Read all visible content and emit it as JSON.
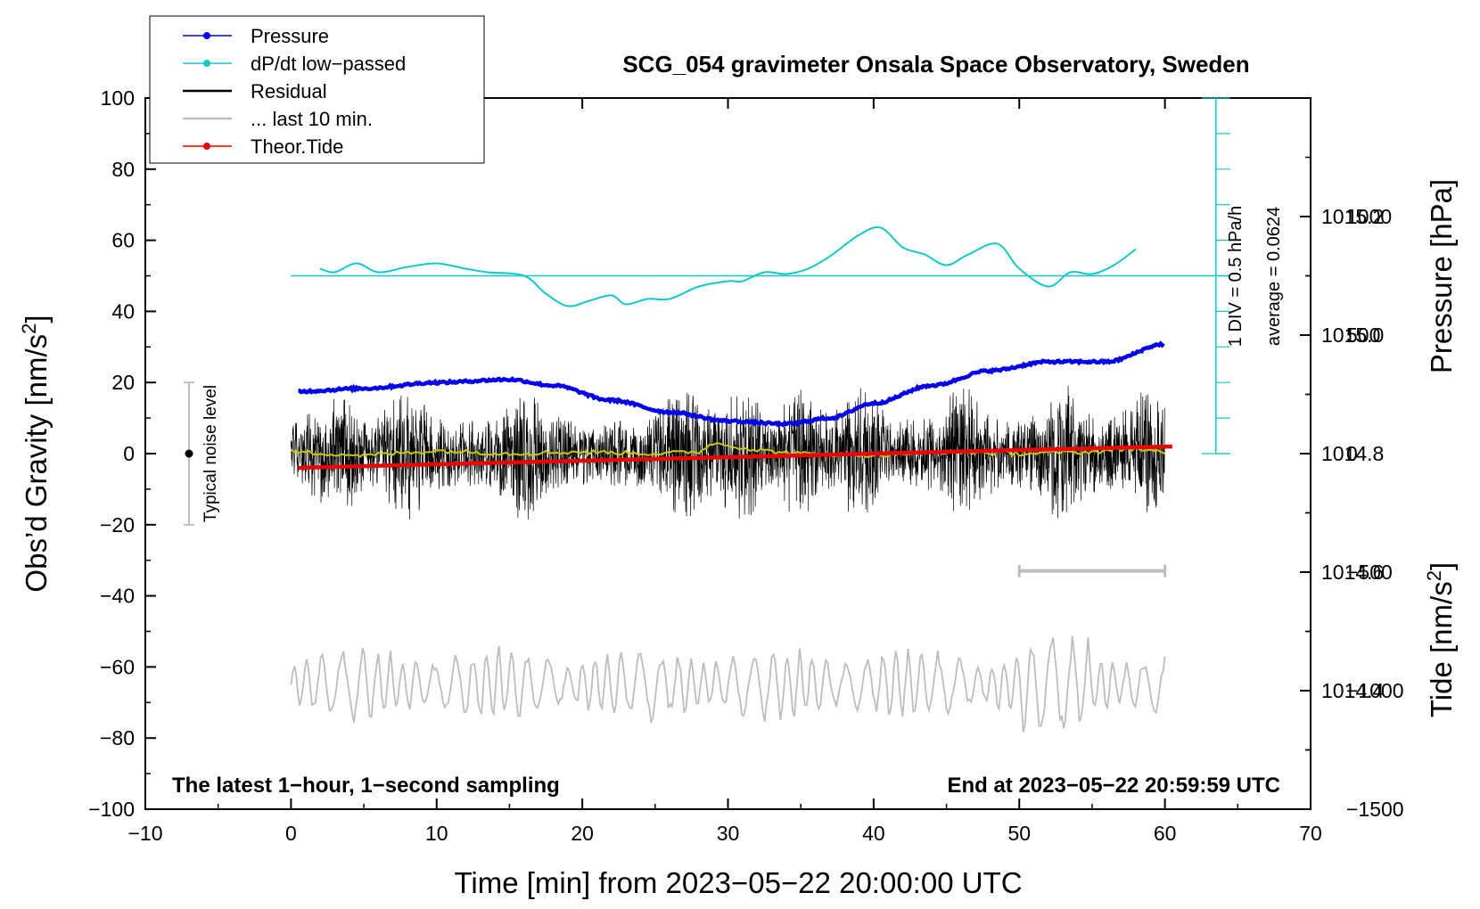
{
  "chart_data": {
    "type": "line",
    "title": "SCG_054 gravimeter Onsala Space Observatory, Sweden",
    "xlabel": "Time [min] from 2023−05−22 20:00:00 UTC",
    "ylabel_left_main": "Obs’d Gravity [nm/s",
    "ylabel_left_sup": "2",
    "ylabel_left_end": "]",
    "ylabel_right_top": "Pressure [hPa]",
    "ylabel_right_bottom_main": "Tide [nm/s",
    "ylabel_right_bottom_sup": "2",
    "ylabel_right_bottom_end": "]",
    "xlim": [
      -10,
      70
    ],
    "ylim_left": [
      -100,
      100
    ],
    "pressure_range": [
      1014.2,
      1015.4
    ],
    "tide_range": [
      -1500,
      1500
    ],
    "x_ticks": [
      "−10",
      "0",
      "10",
      "20",
      "30",
      "40",
      "50",
      "60",
      "70"
    ],
    "y_ticks_left": [
      "100",
      "80",
      "60",
      "40",
      "20",
      "0",
      "−20",
      "−40",
      "−60",
      "−80",
      "−100"
    ],
    "pressure_ticks": [
      "1015.2",
      "1015.0",
      "1014.8",
      "1014.6",
      "1014.4"
    ],
    "tide_ticks": [
      "1000",
      "500",
      "0",
      "−500",
      "−1000",
      "−1500"
    ],
    "annotation_left": "The latest 1−hour, 1−second sampling",
    "annotation_right": "End at 2023−05−22 20:59:59 UTC",
    "noise_label": "Typical noise level",
    "noise_level": {
      "x": -7,
      "center": 0,
      "halfrange": 20
    },
    "scale_bar_label": "1 DIV = 0.5 hPa/h",
    "average_label": "average = 0.0624",
    "last10_bar": {
      "x_start": 50,
      "x_end": 60
    },
    "legend": [
      {
        "label": "Pressure",
        "color": "#0000ee",
        "marker": true
      },
      {
        "label": "dP/dt low−passed",
        "color": "#11c8c8",
        "marker": true
      },
      {
        "label": "Residual",
        "color": "#000000",
        "marker": false
      },
      {
        "label": "... last 10 min.",
        "color": "#bdbdbd",
        "marker": false
      },
      {
        "label": "Theor.Tide",
        "color": "#ee0000",
        "marker": true
      }
    ],
    "series": [
      {
        "name": "Pressure",
        "color": "#0000ee",
        "axis": "pressure",
        "x": [
          0.5,
          5,
          10,
          15,
          18,
          22,
          26,
          30,
          34,
          37,
          40,
          44,
          48,
          52,
          56,
          60
        ],
        "values": [
          1014.905,
          1014.91,
          1014.92,
          1014.925,
          1014.915,
          1014.89,
          1014.87,
          1014.855,
          1014.85,
          1014.86,
          1014.885,
          1014.915,
          1014.94,
          1014.955,
          1014.955,
          1014.985
        ]
      },
      {
        "name": "dP/dt low-passed",
        "color": "#11c8c8",
        "axis": "left",
        "x": [
          2,
          3,
          4.5,
          6,
          8,
          10,
          12,
          13.5,
          16,
          17.5,
          19,
          20.5,
          22,
          23,
          24.5,
          26,
          28,
          30,
          31,
          32.5,
          34,
          35.5,
          37,
          39,
          40.5,
          42,
          43.5,
          45,
          46.5,
          48.5,
          50,
          52,
          53.5,
          55,
          56.5,
          58
        ],
        "values": [
          52,
          51,
          53.5,
          51,
          52.5,
          53.5,
          52,
          51,
          50,
          45,
          41.5,
          43,
          44.5,
          42,
          43.5,
          43.5,
          47,
          48.5,
          48.5,
          51,
          50.5,
          52,
          55.5,
          61.5,
          63.5,
          58,
          56,
          53,
          56,
          59,
          52,
          47,
          51,
          50.5,
          53,
          57.5
        ]
      },
      {
        "name": "Residual",
        "color": "#000000",
        "axis": "left",
        "x_range": [
          0,
          60
        ],
        "typical_amplitude": 15,
        "peak_amplitude": 29
      },
      {
        "name": "Residual smoothed",
        "color": "#c8c800",
        "axis": "left",
        "x": [
          0,
          5,
          10,
          15,
          20,
          25,
          28,
          29,
          32,
          35,
          40,
          45,
          50,
          55,
          58,
          60
        ],
        "values": [
          0.5,
          -0.5,
          0.8,
          0,
          0.5,
          0,
          0.5,
          3,
          1,
          0,
          -0.5,
          0.5,
          0,
          0.5,
          1.5,
          0
        ]
      },
      {
        "name": "... last 10 min.",
        "color": "#bdbdbd",
        "axis": "left",
        "x_range": [
          0,
          60
        ],
        "offset": -65,
        "typical_amplitude": 10,
        "peak_amplitude": 28
      },
      {
        "name": "Theor.Tide",
        "color": "#ee0000",
        "axis": "tide",
        "x": [
          0.5,
          10,
          20,
          30,
          40,
          50,
          60.5
        ],
        "values": [
          -60,
          -45,
          -30,
          -15,
          0,
          15,
          30
        ]
      }
    ]
  }
}
